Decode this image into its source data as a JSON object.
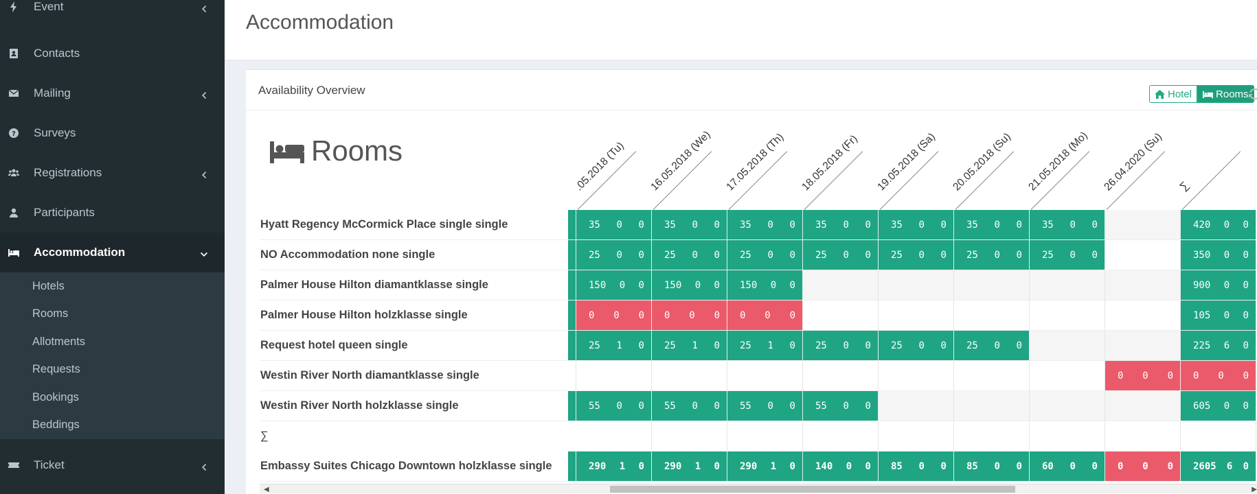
{
  "sidebar": {
    "items": [
      {
        "label": "Event",
        "icon": "bolt-icon",
        "has_children": true
      },
      {
        "label": "Contacts",
        "icon": "address-book-icon",
        "has_children": false
      },
      {
        "label": "Mailing",
        "icon": "envelope-icon",
        "has_children": true
      },
      {
        "label": "Surveys",
        "icon": "question-circle-icon",
        "has_children": false
      },
      {
        "label": "Registrations",
        "icon": "users-icon",
        "has_children": true
      },
      {
        "label": "Participants",
        "icon": "user-icon",
        "has_children": false
      },
      {
        "label": "Accommodation",
        "icon": "bed-icon",
        "has_children": true,
        "expanded": true
      }
    ],
    "sub_items": [
      "Hotels",
      "Rooms",
      "Allotments",
      "Requests",
      "Bookings",
      "Beddings"
    ],
    "bottom_item": {
      "label": "Ticket",
      "icon": "ticket-icon",
      "has_children": true
    }
  },
  "page": {
    "title": "Accommodation"
  },
  "box": {
    "title": "Availability Overview",
    "toggle_hotel": "Hotel",
    "toggle_rooms": "Rooms",
    "heading": "Rooms"
  },
  "dates": [
    ".05.2018 (Tu)",
    "16.05.2018 (We)",
    "17.05.2018 (Th)",
    "18.05.2018 (Fr)",
    "19.05.2018 (Sa)",
    "20.05.2018 (Su)",
    "21.05.2018 (Mo)",
    "26.04.2020 (Su)",
    "∑"
  ],
  "rows": [
    {
      "label": "Hyatt Regency McCormick Place single single",
      "cells": [
        [
          "g",
          "35 0 0"
        ],
        [
          "g",
          "35 0 0"
        ],
        [
          "g",
          "35 0 0"
        ],
        [
          "g",
          "35 0 0"
        ],
        [
          "g",
          "35 0 0"
        ],
        [
          "g",
          "35 0 0"
        ],
        [
          "g",
          "35 0 0"
        ],
        [
          "e",
          ""
        ],
        [
          "g",
          "420 0 0"
        ]
      ]
    },
    {
      "label": "NO Accommodation none single",
      "cells": [
        [
          "g",
          "25 0 0"
        ],
        [
          "g",
          "25 0 0"
        ],
        [
          "g",
          "25 0 0"
        ],
        [
          "g",
          "25 0 0"
        ],
        [
          "g",
          "25 0 0"
        ],
        [
          "g",
          "25 0 0"
        ],
        [
          "g",
          "25 0 0"
        ],
        [
          "w",
          ""
        ],
        [
          "g",
          "350 0 0"
        ]
      ]
    },
    {
      "label": "Palmer House Hilton diamantklasse single",
      "cells": [
        [
          "g",
          "150 0 0"
        ],
        [
          "g",
          "150 0 0"
        ],
        [
          "g",
          "150 0 0"
        ],
        [
          "e",
          ""
        ],
        [
          "e",
          ""
        ],
        [
          "e",
          ""
        ],
        [
          "e",
          ""
        ],
        [
          "e",
          ""
        ],
        [
          "g",
          "900 0 0"
        ]
      ]
    },
    {
      "label": "Palmer House Hilton holzklasse single",
      "cells": [
        [
          "r",
          "0 0 0"
        ],
        [
          "r",
          "0 0 0"
        ],
        [
          "r",
          "0 0 0"
        ],
        [
          "w",
          ""
        ],
        [
          "w",
          ""
        ],
        [
          "w",
          ""
        ],
        [
          "w",
          ""
        ],
        [
          "w",
          ""
        ],
        [
          "g",
          "105 0 0"
        ]
      ]
    },
    {
      "label": "Request hotel queen single",
      "cells": [
        [
          "g",
          "25 1 0"
        ],
        [
          "g",
          "25 1 0"
        ],
        [
          "g",
          "25 1 0"
        ],
        [
          "g",
          "25 0 0"
        ],
        [
          "g",
          "25 0 0"
        ],
        [
          "g",
          "25 0 0"
        ],
        [
          "e",
          ""
        ],
        [
          "e",
          ""
        ],
        [
          "g",
          "225 6 0"
        ]
      ]
    },
    {
      "label": "Westin River North diamantklasse single",
      "cells": [
        [
          "w",
          ""
        ],
        [
          "w",
          ""
        ],
        [
          "w",
          ""
        ],
        [
          "w",
          ""
        ],
        [
          "w",
          ""
        ],
        [
          "w",
          ""
        ],
        [
          "w",
          ""
        ],
        [
          "r",
          "0 0 0"
        ],
        [
          "r",
          "0 0 0"
        ]
      ]
    },
    {
      "label": "Westin River North holzklasse single",
      "cells": [
        [
          "g",
          "55 0 0"
        ],
        [
          "g",
          "55 0 0"
        ],
        [
          "g",
          "55 0 0"
        ],
        [
          "g",
          "55 0 0"
        ],
        [
          "e",
          ""
        ],
        [
          "e",
          ""
        ],
        [
          "e",
          ""
        ],
        [
          "e",
          ""
        ],
        [
          "g",
          "605 0 0"
        ]
      ]
    }
  ],
  "sum_label": "∑",
  "total_row": {
    "label": "Embassy Suites Chicago Downtown holzklasse single",
    "cells": [
      [
        "g",
        "290 1 0"
      ],
      [
        "g",
        "290 1 0"
      ],
      [
        "g",
        "290 1 0"
      ],
      [
        "g",
        "140 0 0"
      ],
      [
        "g",
        "85 0 0"
      ],
      [
        "g",
        "85 0 0"
      ],
      [
        "g",
        "60 0 0"
      ],
      [
        "r",
        "0 0 0"
      ],
      [
        "g",
        "2605 6 0"
      ]
    ]
  },
  "colors": {
    "green": "#1fa583",
    "red": "#eb5a6a",
    "sidebar": "#222d32"
  }
}
